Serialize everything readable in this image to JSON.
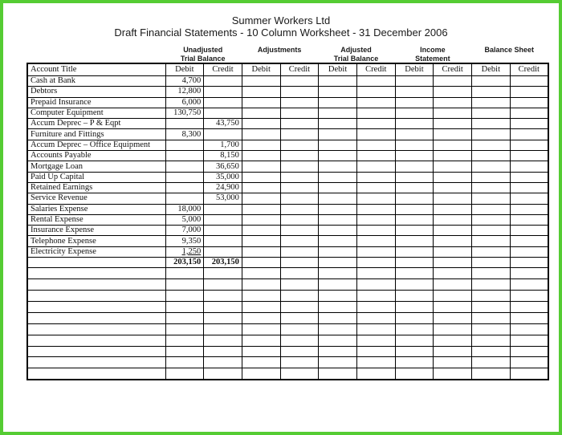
{
  "page": {
    "title": "Summer Workers Ltd",
    "subtitle": "Draft Financial Statements - 10 Column Worksheet - 31 December 2006"
  },
  "colors": {
    "frame_green": "#55cc33",
    "grid_black": "#000000"
  },
  "worksheet": {
    "column_groups": [
      {
        "id": "unadjusted-trial-balance",
        "line1": "Unadjusted",
        "line2": "Trial Balance"
      },
      {
        "id": "adjustments",
        "line1": "Adjustments",
        "line2": ""
      },
      {
        "id": "adjusted-trial-balance",
        "line1": "Adjusted",
        "line2": "Trial Balance"
      },
      {
        "id": "income-statement",
        "line1": "Income",
        "line2": "Statement"
      },
      {
        "id": "balance-sheet",
        "line1": "Balance Sheet",
        "line2": ""
      }
    ],
    "header": {
      "account_title": "Account Title",
      "debit": "Debit",
      "credit": "Credit"
    },
    "rows": [
      {
        "account": "Cash at Bank",
        "cells": [
          "4,700",
          "",
          "",
          "",
          "",
          "",
          "",
          "",
          "",
          ""
        ]
      },
      {
        "account": "Debtors",
        "cells": [
          "12,800",
          "",
          "",
          "",
          "",
          "",
          "",
          "",
          "",
          ""
        ]
      },
      {
        "account": "Prepaid Insurance",
        "cells": [
          "6,000",
          "",
          "",
          "",
          "",
          "",
          "",
          "",
          "",
          ""
        ]
      },
      {
        "account": "Computer Equipment",
        "cells": [
          "130,750",
          "",
          "",
          "",
          "",
          "",
          "",
          "",
          "",
          ""
        ]
      },
      {
        "account": "Accum Deprec – P & Eqpt",
        "cells": [
          "",
          "43,750",
          "",
          "",
          "",
          "",
          "",
          "",
          "",
          ""
        ]
      },
      {
        "account": "Furniture and Fittings",
        "cells": [
          "8,300",
          "",
          "",
          "",
          "",
          "",
          "",
          "",
          "",
          ""
        ]
      },
      {
        "account": "Accum Deprec – Office Equipment",
        "cells": [
          "",
          "1,700",
          "",
          "",
          "",
          "",
          "",
          "",
          "",
          ""
        ]
      },
      {
        "account": "Accounts Payable",
        "cells": [
          "",
          "8,150",
          "",
          "",
          "",
          "",
          "",
          "",
          "",
          ""
        ]
      },
      {
        "account": "Mortgage Loan",
        "cells": [
          "",
          "36,650",
          "",
          "",
          "",
          "",
          "",
          "",
          "",
          ""
        ]
      },
      {
        "account": "Paid Up Capital",
        "cells": [
          "",
          "35,000",
          "",
          "",
          "",
          "",
          "",
          "",
          "",
          ""
        ]
      },
      {
        "account": "Retained Earnings",
        "cells": [
          "",
          "24,900",
          "",
          "",
          "",
          "",
          "",
          "",
          "",
          ""
        ]
      },
      {
        "account": "Service Revenue",
        "cells": [
          "",
          "53,000",
          "",
          "",
          "",
          "",
          "",
          "",
          "",
          ""
        ]
      },
      {
        "account": "Salaries Expense",
        "cells": [
          "18,000",
          "",
          "",
          "",
          "",
          "",
          "",
          "",
          "",
          ""
        ]
      },
      {
        "account": "Rental Expense",
        "cells": [
          "5,000",
          "",
          "",
          "",
          "",
          "",
          "",
          "",
          "",
          ""
        ]
      },
      {
        "account": "Insurance Expense",
        "cells": [
          "7,000",
          "",
          "",
          "",
          "",
          "",
          "",
          "",
          "",
          ""
        ]
      },
      {
        "account": "Telephone Expense",
        "cells": [
          "9,350",
          "",
          "",
          "",
          "",
          "",
          "",
          "",
          "",
          ""
        ]
      },
      {
        "account": "Electricity Expense",
        "cells": [
          "1,250",
          "",
          "",
          "",
          "",
          "",
          "",
          "",
          "",
          ""
        ],
        "underline": true
      }
    ],
    "totals": {
      "account": "",
      "cells": [
        "203,150",
        "203,150",
        "",
        "",
        "",
        "",
        "",
        "",
        "",
        ""
      ]
    },
    "empty_row_count": 10
  }
}
